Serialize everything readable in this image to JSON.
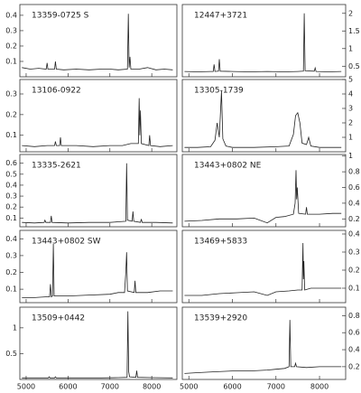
{
  "chart_data": [
    {
      "type": "line",
      "title": "13359-0725 S",
      "color": "#222",
      "x": [
        4900,
        5100,
        5300,
        5480,
        5500,
        5520,
        5680,
        5700,
        5720,
        5900,
        6200,
        6500,
        6800,
        7000,
        7200,
        7420,
        7440,
        7460,
        7480,
        7500,
        7700,
        7900,
        8100,
        8300,
        8500
      ],
      "values": [
        0.06,
        0.05,
        0.055,
        0.05,
        0.09,
        0.05,
        0.05,
        0.1,
        0.05,
        0.045,
        0.05,
        0.045,
        0.05,
        0.05,
        0.045,
        0.05,
        0.41,
        0.06,
        0.13,
        0.05,
        0.05,
        0.06,
        0.045,
        0.05,
        0.045
      ],
      "xlim": [
        4850,
        8600
      ],
      "ylim": [
        0,
        0.47
      ],
      "xticks": [
        5000,
        6000,
        7000,
        8000
      ],
      "yticks": [
        0.1,
        0.2,
        0.3,
        0.4
      ]
    },
    {
      "type": "line",
      "title": "12447+3721",
      "color": "#222",
      "x": [
        4900,
        5200,
        5500,
        5560,
        5580,
        5600,
        5680,
        5700,
        5720,
        6000,
        6400,
        6800,
        7200,
        7500,
        7630,
        7650,
        7670,
        7880,
        7900,
        7920,
        8200,
        8500
      ],
      "values": [
        0.35,
        0.34,
        0.35,
        0.35,
        0.55,
        0.35,
        0.36,
        0.7,
        0.36,
        0.35,
        0.34,
        0.35,
        0.34,
        0.35,
        0.36,
        2.0,
        0.37,
        0.36,
        0.45,
        0.35,
        0.34,
        0.35
      ],
      "xlim": [
        4850,
        8600
      ],
      "ylim": [
        0.2,
        2.25
      ],
      "xticks": [
        5000,
        6000,
        7000,
        8000
      ],
      "yticks": [
        0.5,
        1,
        1.5,
        2
      ]
    },
    {
      "type": "line",
      "title": "13106-0922",
      "color": "#222",
      "x": [
        4900,
        5200,
        5500,
        5680,
        5700,
        5720,
        5800,
        5820,
        5840,
        6200,
        6600,
        7000,
        7300,
        7500,
        7680,
        7700,
        7715,
        7730,
        7750,
        7930,
        7950,
        7970,
        8200,
        8500
      ],
      "values": [
        0.05,
        0.045,
        0.05,
        0.05,
        0.07,
        0.05,
        0.05,
        0.09,
        0.05,
        0.05,
        0.045,
        0.05,
        0.05,
        0.06,
        0.06,
        0.28,
        0.1,
        0.22,
        0.06,
        0.05,
        0.1,
        0.05,
        0.045,
        0.05
      ],
      "xlim": [
        4850,
        8600
      ],
      "ylim": [
        0.02,
        0.37
      ],
      "xticks": [
        5000,
        6000,
        7000,
        8000
      ],
      "yticks": [
        0.1,
        0.2,
        0.3
      ]
    },
    {
      "type": "line",
      "title": "13305-1739",
      "color": "#222",
      "x": [
        4900,
        5200,
        5500,
        5600,
        5650,
        5700,
        5730,
        5750,
        5780,
        5850,
        6000,
        6500,
        7000,
        7300,
        7400,
        7450,
        7500,
        7550,
        7600,
        7700,
        7750,
        7800,
        8000,
        8300,
        8500
      ],
      "values": [
        0.3,
        0.3,
        0.35,
        0.8,
        2.0,
        1.0,
        3.0,
        4.2,
        0.9,
        0.4,
        0.3,
        0.3,
        0.35,
        0.4,
        1.2,
        2.5,
        2.7,
        2.0,
        0.6,
        0.5,
        1.0,
        0.4,
        0.3,
        0.3,
        0.3
      ],
      "xlim": [
        4850,
        8600
      ],
      "ylim": [
        0,
        5
      ],
      "xticks": [
        5000,
        6000,
        7000,
        8000
      ],
      "yticks": [
        1,
        2,
        3,
        4,
        5
      ]
    },
    {
      "type": "line",
      "title": "13335-2621",
      "color": "#222",
      "x": [
        4900,
        5200,
        5430,
        5450,
        5470,
        5580,
        5600,
        5620,
        6000,
        6500,
        7000,
        7200,
        7380,
        7400,
        7420,
        7530,
        7550,
        7570,
        7730,
        7750,
        7770,
        8100,
        8500
      ],
      "values": [
        0.06,
        0.055,
        0.06,
        0.08,
        0.06,
        0.06,
        0.12,
        0.06,
        0.055,
        0.06,
        0.06,
        0.065,
        0.07,
        0.6,
        0.08,
        0.07,
        0.16,
        0.07,
        0.06,
        0.09,
        0.06,
        0.06,
        0.055
      ],
      "xlim": [
        4850,
        8600
      ],
      "ylim": [
        0.02,
        0.68
      ],
      "xticks": [
        5000,
        6000,
        7000,
        8000
      ],
      "yticks": [
        0.1,
        0.2,
        0.3,
        0.4,
        0.5,
        0.6
      ]
    },
    {
      "type": "line",
      "title": "13443+0802 NE",
      "color": "#222",
      "x": [
        4900,
        5300,
        5700,
        6100,
        6500,
        6800,
        7000,
        7200,
        7400,
        7440,
        7460,
        7475,
        7490,
        7520,
        7680,
        7700,
        7720,
        8000,
        8300,
        8500
      ],
      "values": [
        0.17,
        0.18,
        0.2,
        0.2,
        0.21,
        0.15,
        0.22,
        0.23,
        0.26,
        0.4,
        0.82,
        0.45,
        0.6,
        0.27,
        0.26,
        0.35,
        0.26,
        0.26,
        0.27,
        0.27
      ],
      "xlim": [
        4850,
        8600
      ],
      "ylim": [
        0.1,
        1.02
      ],
      "xticks": [
        5000,
        6000,
        7000,
        8000
      ],
      "yticks": [
        0.2,
        0.4,
        0.6,
        0.8,
        1
      ]
    },
    {
      "type": "line",
      "title": "13443+0802 SW",
      "color": "#222",
      "x": [
        4900,
        5200,
        5500,
        5560,
        5580,
        5600,
        5630,
        5650,
        5670,
        6000,
        6500,
        7000,
        7200,
        7350,
        7380,
        7400,
        7420,
        7580,
        7600,
        7620,
        7900,
        8200,
        8500
      ],
      "values": [
        0.05,
        0.05,
        0.055,
        0.055,
        0.13,
        0.055,
        0.06,
        0.37,
        0.06,
        0.06,
        0.065,
        0.07,
        0.08,
        0.08,
        0.2,
        0.32,
        0.09,
        0.08,
        0.15,
        0.08,
        0.08,
        0.09,
        0.09
      ],
      "xlim": [
        4850,
        8600
      ],
      "ylim": [
        0.02,
        0.45
      ],
      "xticks": [
        5000,
        6000,
        7000,
        8000
      ],
      "yticks": [
        0.1,
        0.2,
        0.3,
        0.4
      ]
    },
    {
      "type": "line",
      "title": "13469+5833",
      "color": "#222",
      "x": [
        4900,
        5300,
        5700,
        6100,
        6500,
        6800,
        7000,
        7300,
        7500,
        7600,
        7620,
        7630,
        7640,
        7660,
        7800,
        8100,
        8500
      ],
      "values": [
        0.06,
        0.06,
        0.07,
        0.075,
        0.08,
        0.06,
        0.08,
        0.085,
        0.09,
        0.09,
        0.35,
        0.15,
        0.25,
        0.09,
        0.1,
        0.1,
        0.1
      ],
      "xlim": [
        4850,
        8600
      ],
      "ylim": [
        0.02,
        0.42
      ],
      "xticks": [
        5000,
        6000,
        7000,
        8000
      ],
      "yticks": [
        0.1,
        0.2,
        0.3,
        0.4
      ]
    },
    {
      "type": "line",
      "title": "13509+0442",
      "color": "#222",
      "x": [
        4900,
        5200,
        5530,
        5550,
        5570,
        5680,
        5700,
        5720,
        6200,
        6800,
        7200,
        7410,
        7430,
        7450,
        7470,
        7620,
        7640,
        7660,
        8000,
        8500
      ],
      "values": [
        0.03,
        0.03,
        0.03,
        0.05,
        0.03,
        0.03,
        0.05,
        0.03,
        0.03,
        0.03,
        0.035,
        0.04,
        1.32,
        0.15,
        0.05,
        0.04,
        0.17,
        0.04,
        0.035,
        0.03
      ],
      "xlim": [
        4850,
        8600
      ],
      "ylim": [
        0,
        1.4
      ],
      "xticks": [
        5000,
        6000,
        7000,
        8000
      ],
      "yticks": [
        0.5,
        1
      ]
    },
    {
      "type": "line",
      "title": "13539+2920",
      "color": "#222",
      "x": [
        4900,
        5200,
        5600,
        6000,
        6400,
        6800,
        7000,
        7200,
        7300,
        7320,
        7340,
        7430,
        7450,
        7470,
        7700,
        8000,
        8300,
        8500
      ],
      "values": [
        0.12,
        0.13,
        0.14,
        0.15,
        0.15,
        0.16,
        0.17,
        0.18,
        0.2,
        0.75,
        0.2,
        0.2,
        0.24,
        0.2,
        0.19,
        0.2,
        0.2,
        0.2
      ],
      "xlim": [
        4850,
        8600
      ],
      "ylim": [
        0.05,
        0.9
      ],
      "xticks": [
        5000,
        6000,
        7000,
        8000
      ],
      "yticks": [
        0.2,
        0.4,
        0.6,
        0.8
      ]
    }
  ]
}
